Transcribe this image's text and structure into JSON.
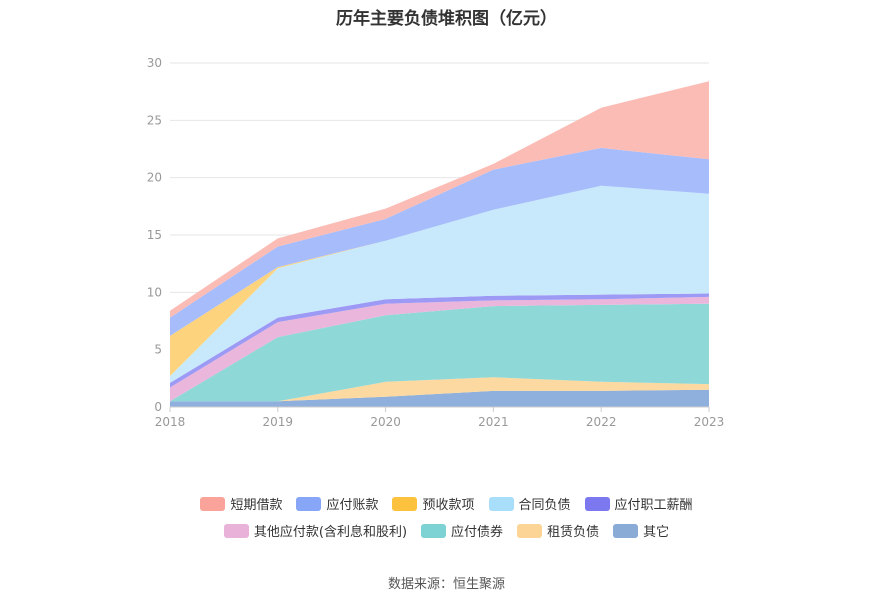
{
  "chart_data": {
    "type": "area",
    "stacked": true,
    "title": "历年主要负债堆积图（亿元）",
    "x": [
      "2018",
      "2019",
      "2020",
      "2021",
      "2022",
      "2023"
    ],
    "ylim": [
      0,
      30
    ],
    "yticks": [
      0,
      5,
      10,
      15,
      20,
      25,
      30
    ],
    "grid": true,
    "legend_position": "bottom",
    "series": [
      {
        "name": "其它",
        "color": "#8fb0dc",
        "values": [
          0.5,
          0.5,
          0.9,
          1.4,
          1.4,
          1.5
        ]
      },
      {
        "name": "租赁负债",
        "color": "#fcd9a0",
        "values": [
          0.0,
          0.0,
          1.3,
          1.2,
          0.8,
          0.5
        ]
      },
      {
        "name": "应付债券",
        "color": "#8ed8d8",
        "values": [
          0.0,
          5.6,
          5.8,
          6.2,
          6.7,
          7.0
        ]
      },
      {
        "name": "其他应付款(含利息和股利)",
        "color": "#eab6dc",
        "values": [
          1.2,
          1.3,
          1.0,
          0.5,
          0.5,
          0.6
        ]
      },
      {
        "name": "应付职工薪酬",
        "color": "#9d9af5",
        "values": [
          0.4,
          0.4,
          0.4,
          0.4,
          0.4,
          0.3
        ]
      },
      {
        "name": "合同负债",
        "color": "#c7e9fb",
        "values": [
          0.6,
          4.3,
          5.1,
          7.5,
          9.5,
          8.7
        ]
      },
      {
        "name": "预收款项",
        "color": "#fed37e",
        "values": [
          3.5,
          0.1,
          0.0,
          0.0,
          0.0,
          0.0
        ]
      },
      {
        "name": "应付账款",
        "color": "#a7bcfb",
        "values": [
          1.6,
          1.8,
          1.9,
          3.5,
          3.3,
          3.0
        ]
      },
      {
        "name": "短期借款",
        "color": "#fbbcb5",
        "values": [
          0.6,
          0.7,
          0.9,
          0.5,
          3.5,
          6.8
        ]
      }
    ]
  },
  "legend": {
    "rows": [
      [
        {
          "label": "短期借款",
          "color": "#f9a39b"
        },
        {
          "label": "应付账款",
          "color": "#88a6f8"
        },
        {
          "label": "预收款项",
          "color": "#fcc23e"
        },
        {
          "label": "合同负债",
          "color": "#a8def9"
        },
        {
          "label": "应付职工薪酬",
          "color": "#7b78f0"
        }
      ],
      [
        {
          "label": "其他应付款(含利息和股利)",
          "color": "#e8b2d9"
        },
        {
          "label": "应付债券",
          "color": "#7dd3d4"
        },
        {
          "label": "租赁负债",
          "color": "#fcd596"
        },
        {
          "label": "其它",
          "color": "#8aabd6"
        }
      ]
    ]
  },
  "source": "数据来源：恒生聚源"
}
